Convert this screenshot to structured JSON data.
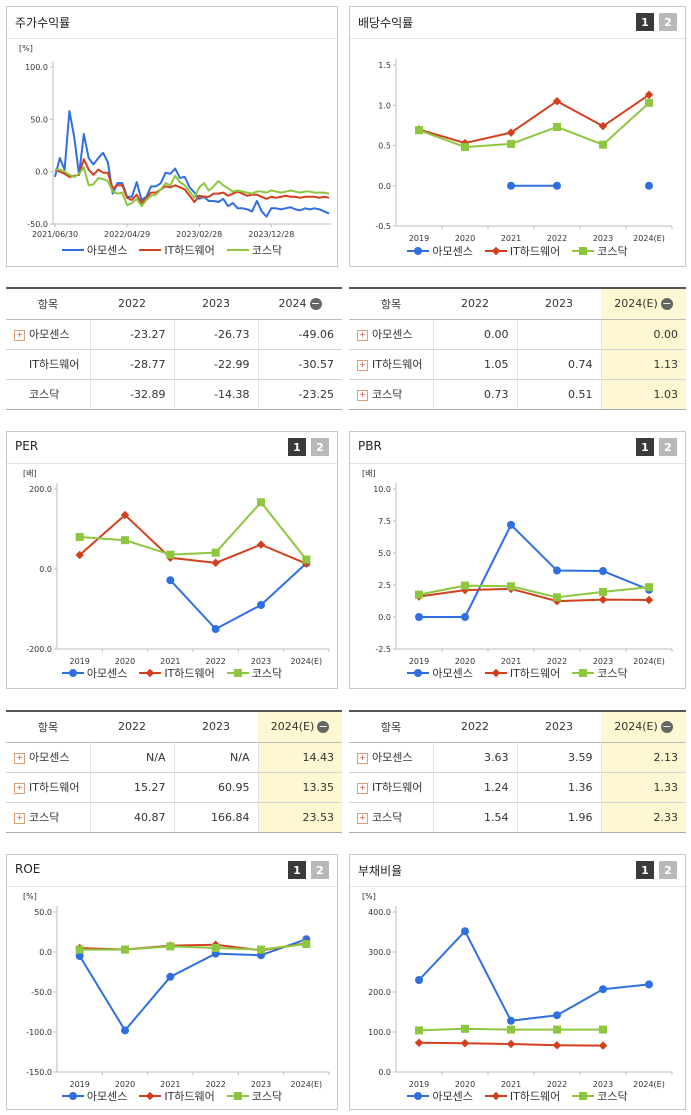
{
  "series_names": [
    "아모센스",
    "IT하드웨어",
    "코스닥"
  ],
  "colors": {
    "amosense": "#2f6fe0",
    "it": "#d2401e",
    "kosdaq": "#8dc63f"
  },
  "icons": {
    "plus": "plus-icon",
    "minus": "minus-icon"
  },
  "tabs": [
    "1",
    "2"
  ],
  "panels": {
    "stock_return": {
      "title": "주가수익률",
      "unit": "[%]"
    },
    "dividend": {
      "title": "배당수익률"
    },
    "per": {
      "title": "PER",
      "unit": "[배]"
    },
    "pbr": {
      "title": "PBR",
      "unit": "[배]"
    },
    "roe": {
      "title": "ROE",
      "unit": "[%]"
    },
    "debt": {
      "title": "부채비율",
      "unit": "[%]"
    }
  },
  "tables": {
    "stock_return": {
      "header": [
        "항목",
        "2022",
        "2023",
        "2024"
      ],
      "rows": [
        {
          "name": "아모센스",
          "values": [
            "-23.27",
            "-26.73",
            "-49.06"
          ]
        },
        {
          "name": "IT하드웨어",
          "values": [
            "-28.77",
            "-22.99",
            "-30.57"
          ]
        },
        {
          "name": "코스닥",
          "values": [
            "-32.89",
            "-14.38",
            "-23.25"
          ]
        }
      ]
    },
    "dividend": {
      "header": [
        "항목",
        "2022",
        "2023",
        "2024(E)"
      ],
      "rows": [
        {
          "name": "아모센스",
          "values": [
            "0.00",
            "",
            "0.00"
          ]
        },
        {
          "name": "IT하드웨어",
          "values": [
            "1.05",
            "0.74",
            "1.13"
          ]
        },
        {
          "name": "코스닥",
          "values": [
            "0.73",
            "0.51",
            "1.03"
          ]
        }
      ]
    },
    "per": {
      "header": [
        "항목",
        "2022",
        "2023",
        "2024(E)"
      ],
      "rows": [
        {
          "name": "아모센스",
          "values": [
            "N/A",
            "N/A",
            "14.43"
          ]
        },
        {
          "name": "IT하드웨어",
          "values": [
            "15.27",
            "60.95",
            "13.35"
          ]
        },
        {
          "name": "코스닥",
          "values": [
            "40.87",
            "166.84",
            "23.53"
          ]
        }
      ]
    },
    "pbr": {
      "header": [
        "항목",
        "2022",
        "2023",
        "2024(E)"
      ],
      "rows": [
        {
          "name": "아모센스",
          "values": [
            "3.63",
            "3.59",
            "2.13"
          ]
        },
        {
          "name": "IT하드웨어",
          "values": [
            "1.24",
            "1.36",
            "1.33"
          ]
        },
        {
          "name": "코스닥",
          "values": [
            "1.54",
            "1.96",
            "2.33"
          ]
        }
      ]
    }
  },
  "chart_data": [
    {
      "id": "stock_return",
      "type": "line",
      "title": "주가수익률",
      "ylabel": "[%]",
      "ylim": [
        -50,
        100
      ],
      "yticks": [
        100,
        50,
        0,
        -50
      ],
      "yticklabels": [
        "100.0",
        "50.0",
        "0.0",
        "-50.0"
      ],
      "xticklabels": [
        "2021/06/30",
        "2022/04/29",
        "2023/02/28",
        "2023/12/28"
      ],
      "xtick_index": [
        0,
        15,
        30,
        45
      ],
      "n_points": 58,
      "series": [
        {
          "name": "아모센스",
          "values": [
            -5,
            13,
            2,
            58,
            33,
            -3,
            36,
            13,
            7,
            13,
            18,
            9,
            -21,
            -11,
            -11,
            -24,
            -24,
            -10,
            -27,
            -24,
            -14,
            -14,
            -11,
            -1,
            -2,
            3,
            -6,
            -5,
            -15,
            -20,
            -26,
            -24,
            -28,
            -28,
            -29,
            -26,
            -33,
            -30,
            -35,
            -35,
            -36,
            -38,
            -28,
            -38,
            -43,
            -35,
            -35,
            -36,
            -35,
            -34,
            -36,
            -37,
            -35,
            -36,
            -35,
            -36,
            -38,
            -40
          ]
        },
        {
          "name": "IT하드웨어",
          "values": [
            2,
            0,
            -2,
            -5,
            -4,
            -3,
            12,
            2,
            -3,
            2,
            -1,
            -1,
            -16,
            -13,
            -13,
            -25,
            -27,
            -22,
            -30,
            -25,
            -20,
            -20,
            -17,
            -14,
            -15,
            -13,
            -15,
            -17,
            -23,
            -29,
            -23,
            -24,
            -24,
            -21,
            -21,
            -20,
            -23,
            -21,
            -19,
            -21,
            -23,
            -22,
            -22,
            -24,
            -26,
            -24,
            -25,
            -24,
            -23,
            -24,
            -24,
            -25,
            -24,
            -24,
            -24,
            -25,
            -24,
            -25
          ]
        },
        {
          "name": "코스닥",
          "values": [
            2,
            2,
            0,
            -3,
            -5,
            -2,
            4,
            -13,
            -12,
            -6,
            -7,
            -9,
            -19,
            -21,
            -20,
            -32,
            -30,
            -26,
            -33,
            -27,
            -23,
            -22,
            -17,
            -11,
            -13,
            -4,
            -10,
            -13,
            -19,
            -25,
            -15,
            -11,
            -18,
            -14,
            -9,
            -13,
            -16,
            -19,
            -18,
            -19,
            -20,
            -21,
            -19,
            -19,
            -20,
            -18,
            -19,
            -20,
            -19,
            -18,
            -19,
            -20,
            -19,
            -19,
            -20,
            -20,
            -20,
            -21
          ]
        }
      ]
    },
    {
      "id": "dividend",
      "type": "line",
      "title": "배당수익률",
      "ylim": [
        -0.5,
        1.5
      ],
      "yticks": [
        1.5,
        1.0,
        0.5,
        0.0,
        -0.5
      ],
      "yticklabels": [
        "1.5",
        "1.0",
        "0.5",
        "0.0",
        "-0.5"
      ],
      "categories": [
        "2019",
        "2020",
        "2021",
        "2022",
        "2023",
        "2024(E)"
      ],
      "series": [
        {
          "name": "아모센스",
          "values": [
            null,
            null,
            0.0,
            0.0,
            null,
            0.0
          ]
        },
        {
          "name": "IT하드웨어",
          "values": [
            0.7,
            0.53,
            0.66,
            1.05,
            0.74,
            1.13
          ]
        },
        {
          "name": "코스닥",
          "values": [
            0.69,
            0.48,
            0.52,
            0.73,
            0.51,
            1.03
          ]
        }
      ]
    },
    {
      "id": "per",
      "type": "line",
      "title": "PER",
      "ylabel": "[배]",
      "ylim": [
        -200,
        200
      ],
      "yticks": [
        200,
        0,
        -200
      ],
      "yticklabels": [
        "200.0",
        "0.0",
        "-200.0"
      ],
      "categories": [
        "2019",
        "2020",
        "2021",
        "2022",
        "2023",
        "2024(E)"
      ],
      "series": [
        {
          "name": "아모센스",
          "values": [
            null,
            null,
            -28,
            -150,
            -90,
            14.43
          ]
        },
        {
          "name": "IT하드웨어",
          "values": [
            35,
            135,
            28,
            15.27,
            60.95,
            13.35
          ]
        },
        {
          "name": "코스닥",
          "values": [
            80,
            72,
            36,
            40.87,
            166.84,
            23.53
          ]
        }
      ]
    },
    {
      "id": "pbr",
      "type": "line",
      "title": "PBR",
      "ylabel": "[배]",
      "ylim": [
        -2.5,
        10
      ],
      "yticks": [
        10,
        7.5,
        5,
        2.5,
        0,
        -2.5
      ],
      "yticklabels": [
        "10.0",
        "7.5",
        "5.0",
        "2.5",
        "0.0",
        "-2.5"
      ],
      "categories": [
        "2019",
        "2020",
        "2021",
        "2022",
        "2023",
        "2024(E)"
      ],
      "series": [
        {
          "name": "아모센스",
          "values": [
            0.0,
            0.0,
            7.2,
            3.63,
            3.59,
            2.13
          ]
        },
        {
          "name": "IT하드웨어",
          "values": [
            1.6,
            2.1,
            2.2,
            1.24,
            1.36,
            1.33
          ]
        },
        {
          "name": "코스닥",
          "values": [
            1.75,
            2.45,
            2.4,
            1.54,
            1.96,
            2.33
          ]
        }
      ]
    },
    {
      "id": "roe",
      "type": "line",
      "title": "ROE",
      "ylabel": "[%]",
      "ylim": [
        -150,
        50
      ],
      "yticks": [
        50,
        0,
        -50,
        -100,
        -150
      ],
      "yticklabels": [
        "50.0",
        "0.0",
        "-50.0",
        "-100.0",
        "-150.0"
      ],
      "categories": [
        "2019",
        "2020",
        "2021",
        "2022",
        "2023",
        "2024(E)"
      ],
      "series": [
        {
          "name": "아모센스",
          "values": [
            -5,
            -98,
            -31,
            -2,
            -4,
            16
          ]
        },
        {
          "name": "IT하드웨어",
          "values": [
            5,
            3,
            8,
            9,
            2,
            11
          ]
        },
        {
          "name": "코스닥",
          "values": [
            3,
            3,
            7,
            5,
            3,
            10
          ]
        }
      ]
    },
    {
      "id": "debt",
      "type": "line",
      "title": "부채비율",
      "ylabel": "[%]",
      "ylim": [
        0,
        400
      ],
      "yticks": [
        400,
        300,
        200,
        100,
        0
      ],
      "yticklabels": [
        "400.0",
        "300.0",
        "200.0",
        "100.0",
        "0.0"
      ],
      "categories": [
        "2019",
        "2020",
        "2021",
        "2022",
        "2023",
        "2024(E)"
      ],
      "series": [
        {
          "name": "아모센스",
          "values": [
            230,
            352,
            128,
            142,
            207,
            219
          ]
        },
        {
          "name": "IT하드웨어",
          "values": [
            73,
            72,
            70,
            67,
            66,
            null
          ]
        },
        {
          "name": "코스닥",
          "values": [
            104,
            108,
            106,
            106,
            106,
            null
          ]
        }
      ]
    }
  ]
}
